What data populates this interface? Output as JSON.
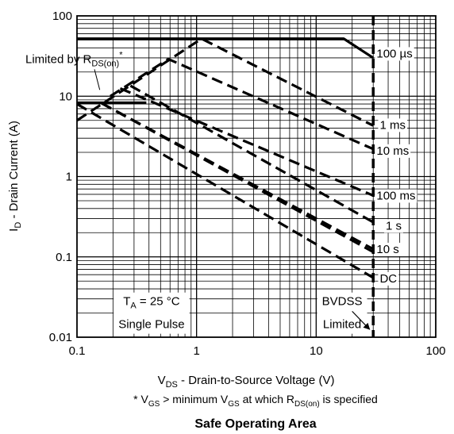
{
  "chart_data": {
    "type": "line",
    "title": "Safe Operating Area",
    "xscale": "log",
    "yscale": "log",
    "xlim": [
      0.1,
      100
    ],
    "ylim": [
      0.01,
      100
    ],
    "x_tick_labels": [
      "0.1",
      "1",
      "10",
      "100"
    ],
    "y_tick_labels": [
      "0.01",
      "0.1",
      "1",
      "10",
      "100"
    ],
    "xlabel": {
      "main": "V",
      "sub": "DS",
      "rest": " - Drain-to-Source Voltage (V)"
    },
    "ylabel": {
      "main": "I",
      "sub": "D",
      "rest": " - Drain Current (A)"
    },
    "footnote": {
      "p1": "* V",
      "s1": "GS",
      "p2": " > minimum V",
      "s2": "GS",
      "p3": " at which R",
      "s3": "DS(on)",
      "p4": " is specified"
    },
    "grid": true,
    "solid_limits": [
      {
        "points": [
          [
            0.1,
            52
          ],
          [
            17,
            52
          ],
          [
            30,
            30
          ]
        ]
      },
      {
        "points": [
          [
            0.1,
            8.3
          ],
          [
            0.38,
            8.3
          ]
        ]
      }
    ],
    "bvdss_voltage": 30,
    "series": [
      {
        "name": "100 µs",
        "points": [
          [
            0.1,
            5
          ],
          [
            1.1,
            52
          ],
          [
            30,
            4.3
          ]
        ]
      },
      {
        "name": "1 ms",
        "points": [
          [
            0.19,
            10
          ],
          [
            0.58,
            29
          ],
          [
            30,
            2.2
          ]
        ]
      },
      {
        "name": "10 ms",
        "points": [
          [
            0.23,
            12.5
          ],
          [
            30,
            0.58
          ]
        ]
      },
      {
        "name": "100 ms",
        "points": [
          [
            0.28,
            13.5
          ],
          [
            30,
            0.27
          ]
        ]
      },
      {
        "name": "1 s",
        "points": [
          [
            0.16,
            8.2
          ],
          [
            30,
            0.125
          ]
        ]
      },
      {
        "name": "10 s",
        "points": [
          [
            0.16,
            8.2
          ],
          [
            30,
            0.115
          ]
        ]
      },
      {
        "name": "DC",
        "points": [
          [
            0.1,
            8
          ],
          [
            30,
            0.055
          ]
        ]
      }
    ],
    "curve_labels": [
      {
        "text": "100 µs",
        "x": 31,
        "y": 34
      },
      {
        "text": "1 ms",
        "x": 33,
        "y": 4.4
      },
      {
        "text": "10 ms",
        "x": 31,
        "y": 2.1
      },
      {
        "text": "100 ms",
        "x": 31,
        "y": 0.58
      },
      {
        "text": "1 s",
        "x": 37,
        "y": 0.245
      },
      {
        "text": "10 s",
        "x": 31,
        "y": 0.125
      },
      {
        "text": "DC",
        "x": 33,
        "y": 0.054
      }
    ],
    "annotations": {
      "rds_label": {
        "main": "Limited by R",
        "sub": "DS(on)",
        "sup": "*",
        "x": 0.1,
        "y": 29
      },
      "ta_label": {
        "main": "T",
        "sub": "A",
        "rest": " = 25 °C",
        "x": 0.42,
        "y": 0.028
      },
      "single_pulse": {
        "text": "Single Pulse",
        "x": 0.42,
        "y": 0.0145
      },
      "bvdss_label": {
        "text": "BVDSS",
        "x": 16.5,
        "y": 0.028
      },
      "bvdss_limited": {
        "text": "Limited",
        "x": 16.5,
        "y": 0.0145
      },
      "bvdss_arrow": {
        "from": [
          20,
          0.021
        ],
        "to": [
          28,
          0.0125
        ]
      }
    }
  }
}
